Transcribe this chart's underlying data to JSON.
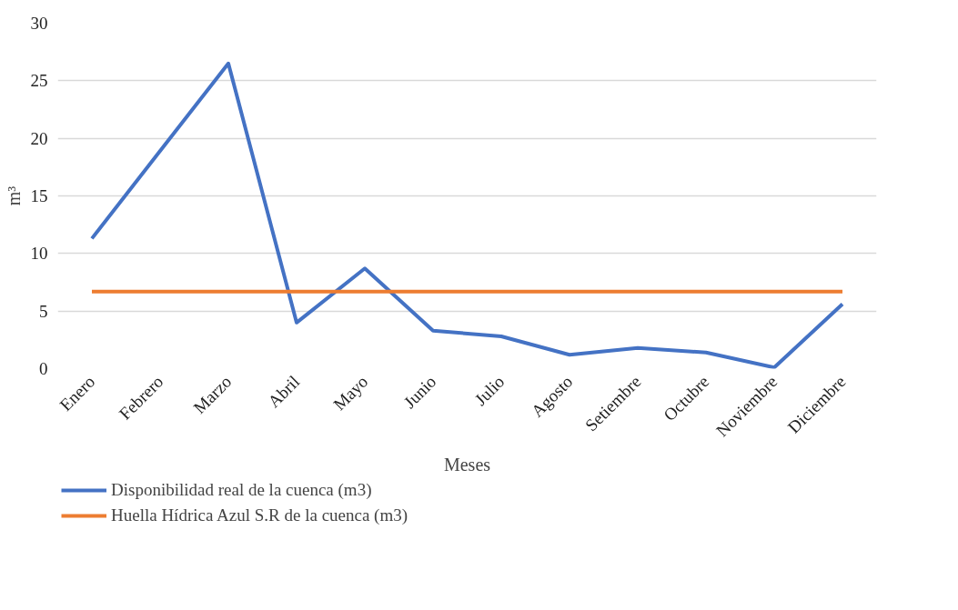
{
  "chart_data": {
    "type": "line",
    "xlabel": "Meses",
    "ylabel": "m³",
    "categories": [
      "Enero",
      "Febrero",
      "Marzo",
      "Abril",
      "Mayo",
      "Junio",
      "Julio",
      "Agosto",
      "Setiembre",
      "Octubre",
      "Noviembre",
      "Diciembre"
    ],
    "series": [
      {
        "name": "Disponibilidad real de la cuenca (m3)",
        "color": "#4472c4",
        "values": [
          11.3,
          18.9,
          26.5,
          4.0,
          8.7,
          3.3,
          2.8,
          1.2,
          1.8,
          1.4,
          0.1,
          5.6
        ]
      },
      {
        "name": "Huella Hídrica Azul S.R de la cuenca (m3)",
        "color": "#ed7d31",
        "values": [
          6.7,
          6.7,
          6.7,
          6.7,
          6.7,
          6.7,
          6.7,
          6.7,
          6.7,
          6.7,
          6.7,
          6.7
        ]
      }
    ],
    "ylim": [
      0,
      30
    ],
    "yticks": [
      0,
      5,
      10,
      15,
      20,
      25,
      30
    ],
    "grid": "y",
    "legend": "bottom",
    "marker": "none",
    "line_style": "solid"
  }
}
